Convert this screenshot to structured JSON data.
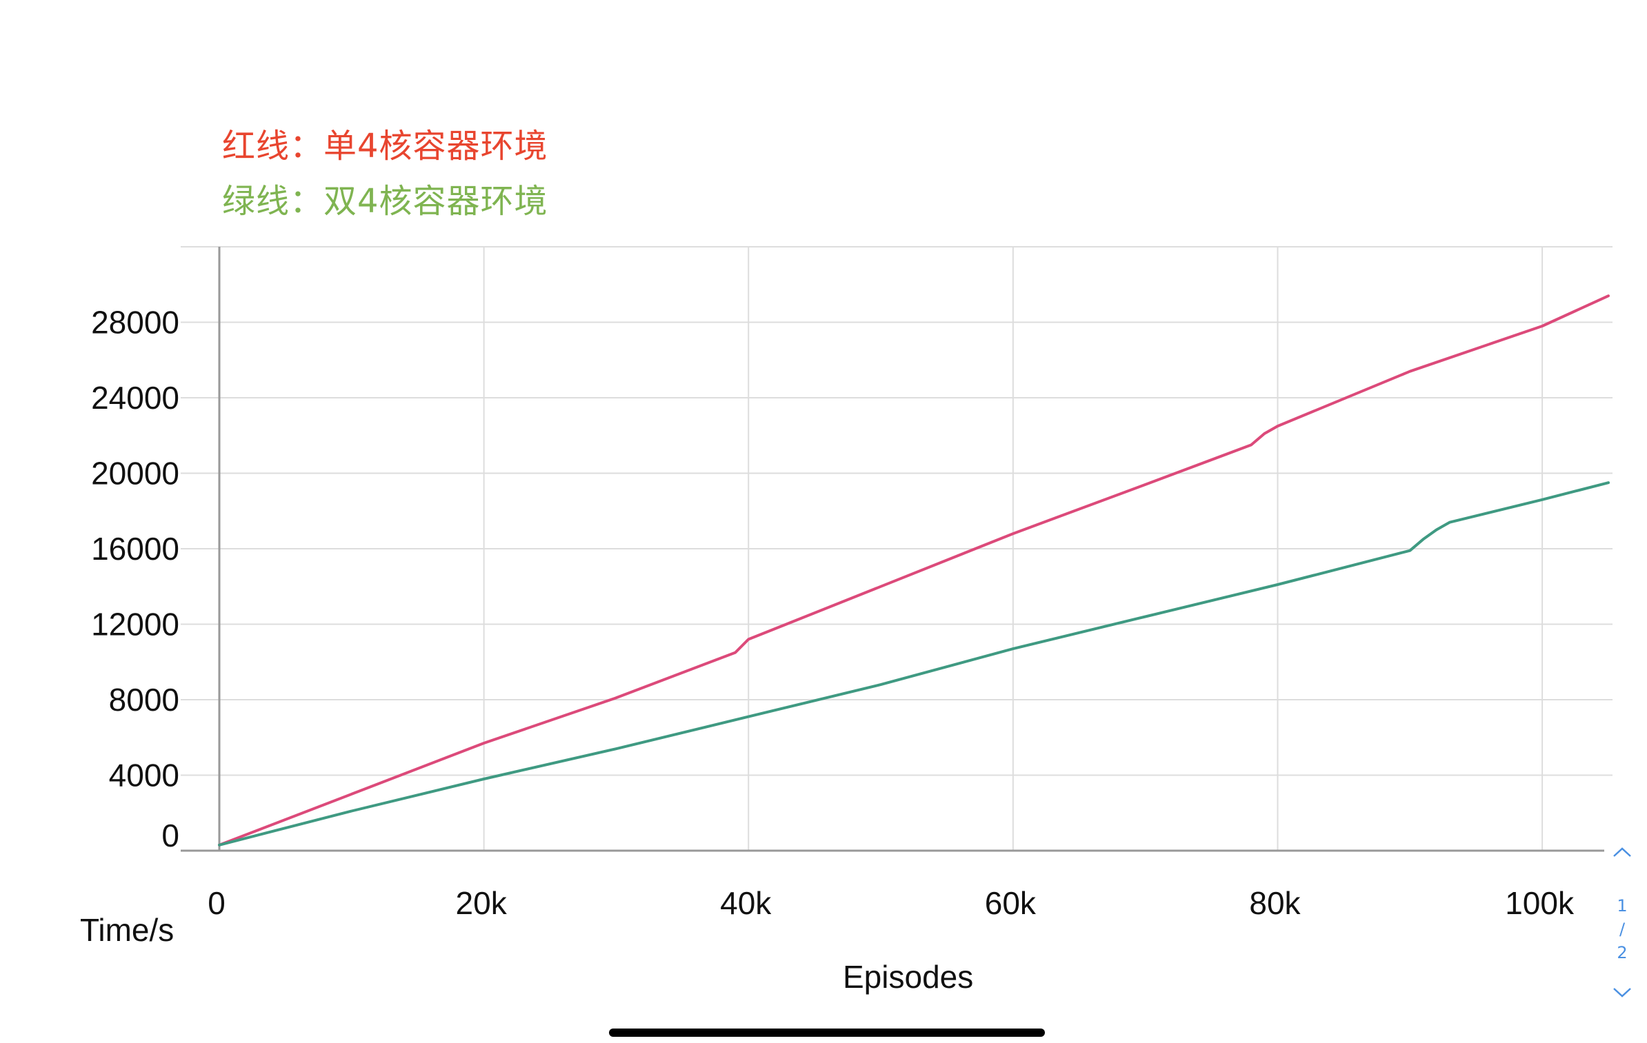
{
  "legend": {
    "red": "红线：单4核容器环境",
    "green": "绿线：双4核容器环境"
  },
  "pager": {
    "current": "1",
    "separator": "/",
    "total": "2",
    "up_icon": "chevron-up-icon",
    "down_icon": "chevron-down-icon"
  },
  "colors": {
    "red_line": "#dc4a7a",
    "green_line": "#3f9a82",
    "legend_red": "#e8452f",
    "legend_green": "#7fb451",
    "grid": "#dddddd",
    "axis": "#999999",
    "pager": "#4a90e2"
  },
  "chart_data": {
    "type": "line",
    "title": "",
    "xlabel": "Episodes",
    "ylabel": "Time/s",
    "xlim": [
      0,
      105000
    ],
    "ylim": [
      0,
      32000
    ],
    "x_ticks": [
      0,
      20000,
      40000,
      60000,
      80000,
      100000
    ],
    "x_tick_labels": [
      "0",
      "20k",
      "40k",
      "60k",
      "80k",
      "100k"
    ],
    "y_ticks": [
      0,
      4000,
      8000,
      12000,
      16000,
      20000,
      24000,
      28000
    ],
    "y_tick_labels": [
      "0",
      "4000",
      "8000",
      "12000",
      "16000",
      "20000",
      "24000",
      "28000"
    ],
    "grid": true,
    "series": [
      {
        "name": "",
        "color": "#dc4a7a",
        "x": [
          0,
          10000,
          20000,
          30000,
          39000,
          40000,
          50000,
          60000,
          70000,
          78000,
          79000,
          80000,
          90000,
          100000,
          105000
        ],
        "y": [
          300,
          3000,
          5700,
          8100,
          10500,
          11200,
          14000,
          16800,
          19400,
          21500,
          22100,
          22500,
          25400,
          27800,
          29400
        ]
      },
      {
        "name": "",
        "color": "#3f9a82",
        "x": [
          0,
          10000,
          20000,
          30000,
          40000,
          50000,
          60000,
          70000,
          80000,
          90000,
          91000,
          92000,
          93000,
          100000,
          105000
        ],
        "y": [
          300,
          2100,
          3800,
          5400,
          7100,
          8800,
          10700,
          12400,
          14100,
          15900,
          16500,
          17000,
          17400,
          18600,
          19500
        ]
      }
    ]
  }
}
